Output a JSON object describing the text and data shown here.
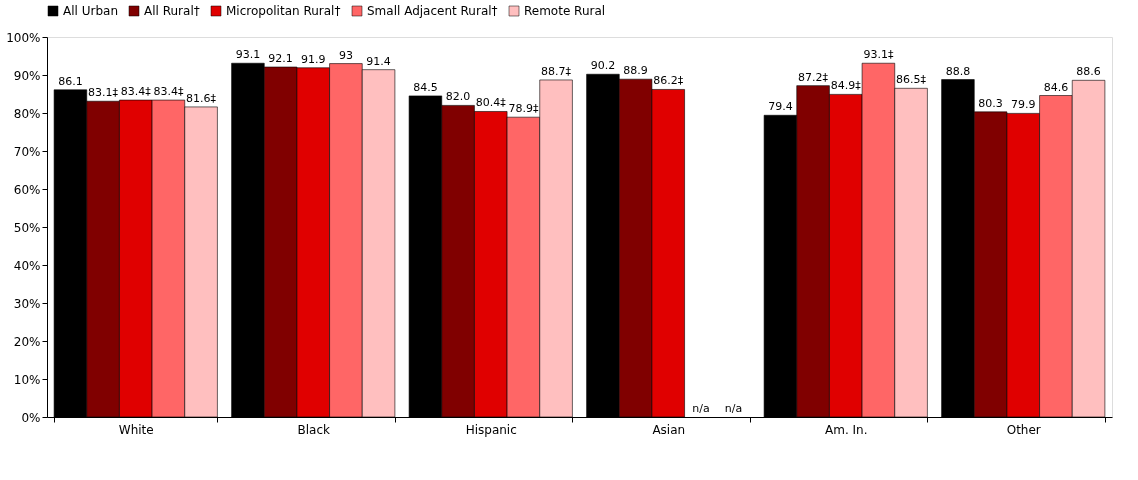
{
  "chart_data": {
    "type": "bar",
    "categories": [
      "White",
      "Black",
      "Hispanic",
      "Asian",
      "Am. In.",
      "Other"
    ],
    "series": [
      {
        "name": "All Urban",
        "color": "#000000",
        "values": [
          86.1,
          93.1,
          84.5,
          90.2,
          79.4,
          88.8
        ],
        "value_labels": [
          "86.1",
          "93.1",
          "84.5",
          "90.2",
          "79.4",
          "88.8"
        ]
      },
      {
        "name": "All Rural†",
        "color": "#800000",
        "values": [
          83.1,
          92.1,
          82.0,
          88.9,
          87.2,
          80.3
        ],
        "value_labels": [
          "83.1‡",
          "92.1",
          "82.0",
          "88.9",
          "87.2‡",
          "80.3"
        ]
      },
      {
        "name": "Micropolitan Rural†",
        "color": "#e00000",
        "values": [
          83.4,
          91.9,
          80.4,
          86.2,
          84.9,
          79.9
        ],
        "value_labels": [
          "83.4‡",
          "91.9",
          "80.4‡",
          "86.2‡",
          "84.9‡",
          "79.9"
        ]
      },
      {
        "name": "Small Adjacent Rural†",
        "color": "#ff6666",
        "values": [
          83.4,
          93,
          78.9,
          null,
          93.1,
          84.6
        ],
        "value_labels": [
          "83.4‡",
          "93",
          "78.9‡",
          "n/a",
          "93.1‡",
          "84.6"
        ]
      },
      {
        "name": "Remote Rural",
        "color": "#ffbfbf",
        "values": [
          81.6,
          91.4,
          88.7,
          null,
          86.5,
          88.6
        ],
        "value_labels": [
          "81.6‡",
          "91.4",
          "88.7‡",
          "n/a",
          "86.5‡",
          "88.6"
        ]
      }
    ],
    "ylim": [
      0,
      100
    ],
    "yticks": [
      {
        "value": 0,
        "label": "0%"
      },
      {
        "value": 10,
        "label": "10%"
      },
      {
        "value": 20,
        "label": "20%"
      },
      {
        "value": 30,
        "label": "30%"
      },
      {
        "value": 40,
        "label": "40%"
      },
      {
        "value": 50,
        "label": "50%"
      },
      {
        "value": 60,
        "label": "60%"
      },
      {
        "value": 70,
        "label": "70%"
      },
      {
        "value": 80,
        "label": "80%"
      },
      {
        "value": 90,
        "label": "90%"
      },
      {
        "value": 100,
        "label": "100%"
      }
    ],
    "legend": "top left",
    "grid": false
  }
}
